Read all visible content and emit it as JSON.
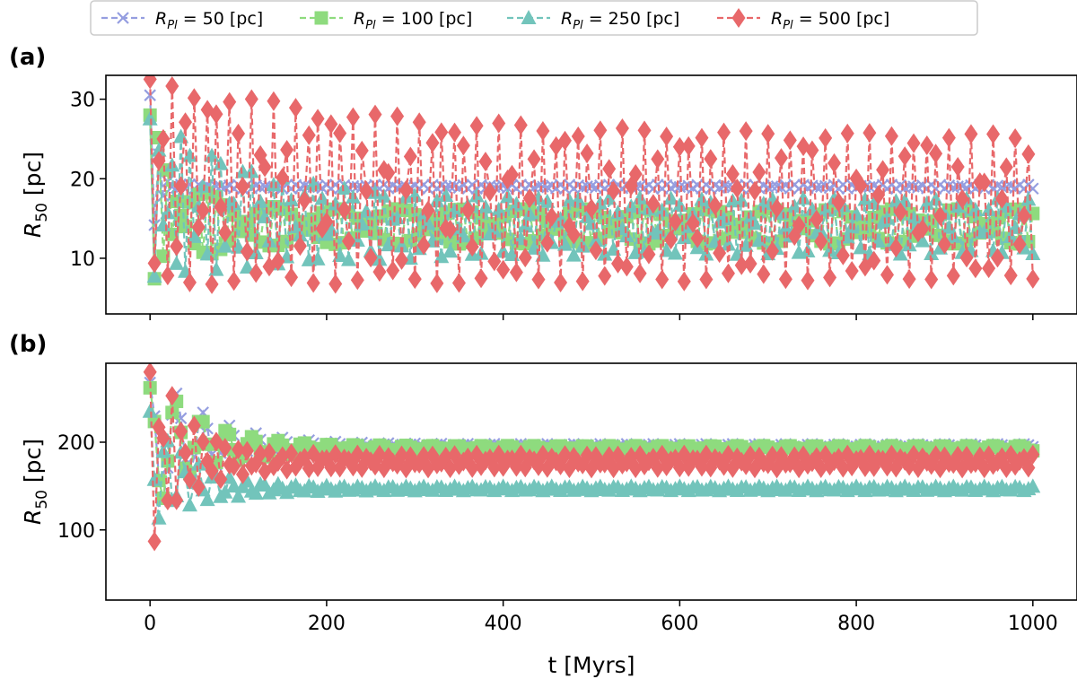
{
  "legend": [
    {
      "symbol": "R",
      "subscript": "Pl",
      "text": " = 50 [pc]"
    },
    {
      "symbol": "R",
      "subscript": "Pl",
      "text": " = 100 [pc]"
    },
    {
      "symbol": "R",
      "subscript": "Pl",
      "text": " = 250 [pc]"
    },
    {
      "symbol": "R",
      "subscript": "Pl",
      "text": " = 500 [pc]"
    }
  ],
  "chart_data": [
    {
      "type": "line",
      "panel_label": "(a)",
      "title": "",
      "xlabel": "",
      "ylabel": {
        "symbol": "R",
        "subscript": "50",
        "unit": " [pc]"
      },
      "xlim": [
        -50,
        1050
      ],
      "ylim": [
        3,
        33
      ],
      "xticks": [
        0,
        200,
        400,
        600,
        800,
        1000
      ],
      "xtick_labels_visible": false,
      "yticks": [
        10,
        20,
        30
      ],
      "series": [
        {
          "name": "R_Pl = 50 [pc]",
          "color": "#959ee0",
          "marker": "x",
          "x_step": 5,
          "model": {
            "start": 30.5,
            "end": 19.0,
            "amp0": 11.5,
            "amp1": 0.25,
            "amp_decay": 9,
            "period": 10,
            "phase_decay": 0
          }
        },
        {
          "name": "R_Pl = 100 [pc]",
          "color": "#8edb7e",
          "marker": "square",
          "x_step": 5,
          "model": {
            "start": 28.0,
            "end": 14.0,
            "amp0": 11.0,
            "amp1": 2.2,
            "amp_decay": 40,
            "period": 12,
            "phase_decay": 0
          }
        },
        {
          "name": "R_Pl = 250 [pc]",
          "color": "#72c4bb",
          "marker": "triangle",
          "x_step": 5,
          "model": {
            "start": 27.5,
            "end": 14.0,
            "amp0": 10.5,
            "amp1": 3.5,
            "amp_decay": 120,
            "period": 13,
            "phase_decay": 0
          }
        },
        {
          "name": "R_Pl = 500 [pc]",
          "color": "#e8686a",
          "marker": "diamond",
          "x_step": 5,
          "model": {
            "start": 32.5,
            "end": 16.5,
            "amp0": 13.0,
            "amp1": 9.0,
            "amp_decay": 300,
            "period": 14.5,
            "phase_decay": 0
          }
        }
      ]
    },
    {
      "type": "line",
      "panel_label": "(b)",
      "title": "",
      "xlabel": "t [Myrs]",
      "ylabel": {
        "symbol": "R",
        "subscript": "50",
        "unit": " [pc]"
      },
      "xlim": [
        -50,
        1050
      ],
      "ylim": [
        20,
        290
      ],
      "xticks": [
        0,
        200,
        400,
        600,
        800,
        1000
      ],
      "xtick_labels_visible": true,
      "yticks": [
        100,
        200
      ],
      "series": [
        {
          "name": "R_Pl = 50 [pc]",
          "color": "#959ee0",
          "marker": "x",
          "x_step": 5,
          "model": {
            "start": 268,
            "end": 196,
            "amp0": 85,
            "amp1": 2,
            "amp_decay": 60,
            "period": 42,
            "phase_decay": 0
          }
        },
        {
          "name": "R_Pl = 100 [pc]",
          "color": "#8edb7e",
          "marker": "square",
          "x_step": 5,
          "model": {
            "start": 262,
            "end": 193,
            "amp0": 80,
            "amp1": 3,
            "amp_decay": 55,
            "period": 40,
            "phase_decay": 0
          }
        },
        {
          "name": "R_Pl = 250 [pc]",
          "color": "#72c4bb",
          "marker": "triangle",
          "x_step": 5,
          "model": {
            "start": 235,
            "end": 147,
            "amp0": 70,
            "amp1": 2.5,
            "amp_decay": 45,
            "period": 22,
            "phase_decay": 0
          }
        },
        {
          "name": "R_Pl = 500 [pc]",
          "color": "#e8686a",
          "marker": "diamond",
          "x_step": 5,
          "model": {
            "start": 280,
            "end": 178,
            "amp0": 120,
            "amp1": 8,
            "amp_decay": 38,
            "period": 14,
            "phase_decay": 0
          }
        }
      ]
    }
  ]
}
